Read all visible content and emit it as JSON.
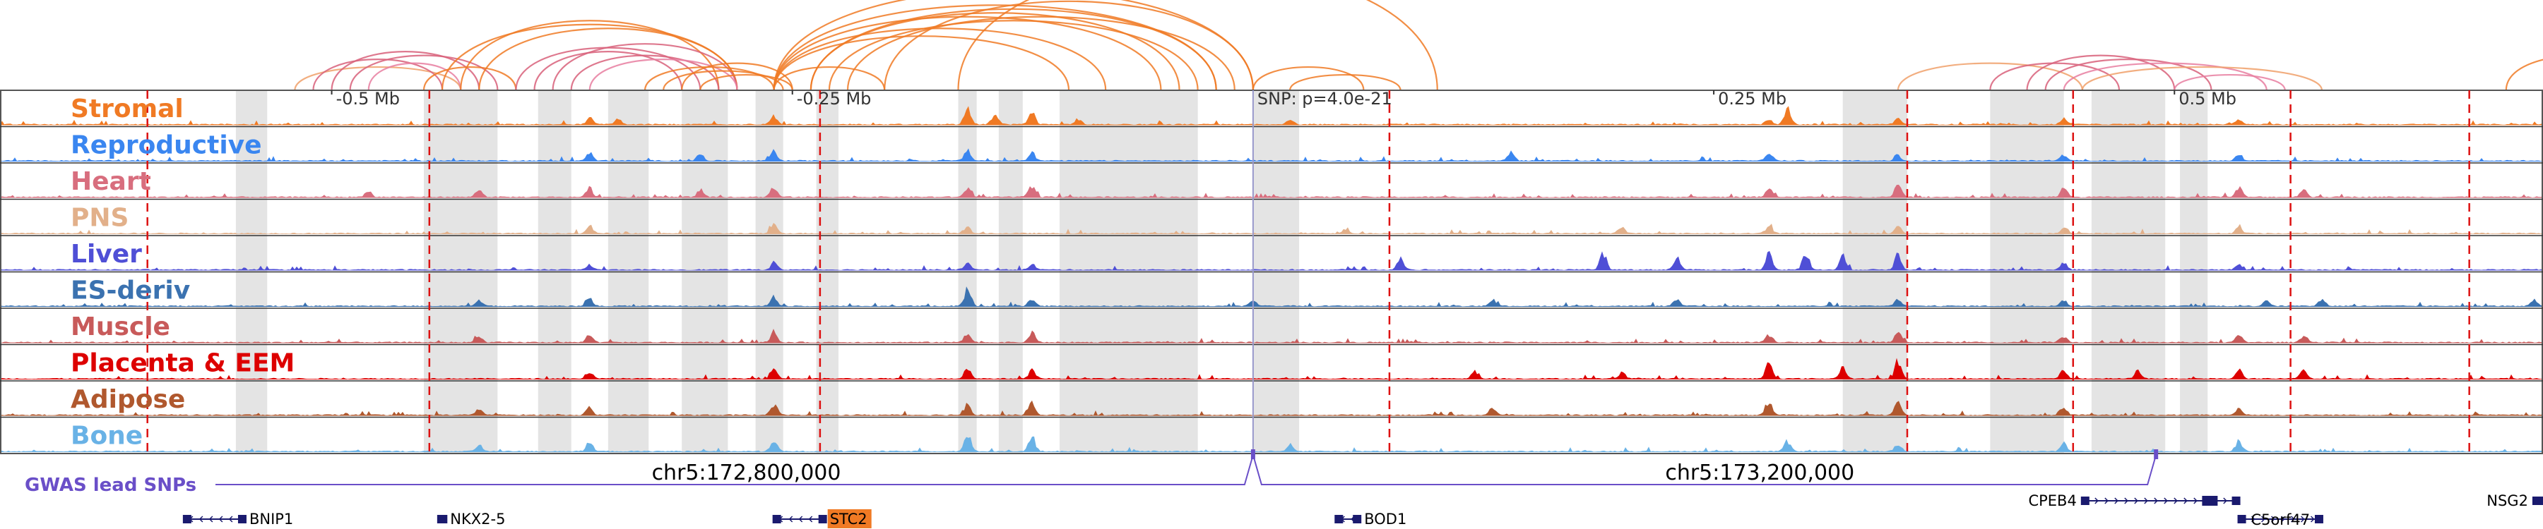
{
  "chart_data": {
    "type": "area",
    "region": {
      "chrom": "chr5",
      "center_label": "SNP: p=4.0e-21",
      "range_mb": [
        -0.68,
        0.7
      ]
    },
    "axis_ticks": [
      {
        "label": "-0.5 Mb",
        "pos_mb": -0.5
      },
      {
        "label": "-0.25 Mb",
        "pos_mb": -0.25
      },
      {
        "label": "0.25 Mb",
        "pos_mb": 0.25
      },
      {
        "label": "0.5 Mb",
        "pos_mb": 0.5
      }
    ],
    "coordinate_labels": [
      {
        "text": "chr5:172,800,000",
        "pos_mb": -0.275
      },
      {
        "text": "chr5:173,200,000",
        "pos_mb": 0.275
      }
    ],
    "tracks": [
      {
        "name": "Stromal",
        "color": "#f07a24",
        "peaks": [
          [
            -0.36,
            0.35
          ],
          [
            -0.345,
            0.3
          ],
          [
            -0.26,
            0.45
          ],
          [
            -0.155,
            0.9
          ],
          [
            -0.14,
            0.6
          ],
          [
            -0.12,
            0.7
          ],
          [
            -0.095,
            0.3
          ],
          [
            0.02,
            0.25
          ],
          [
            0.28,
            0.3
          ],
          [
            0.29,
            0.9
          ],
          [
            0.35,
            0.3
          ],
          [
            0.44,
            0.3
          ],
          [
            0.535,
            0.25
          ]
        ]
      },
      {
        "name": "Reproductive",
        "color": "#3a86f0",
        "peaks": [
          [
            -0.36,
            0.4
          ],
          [
            -0.3,
            0.35
          ],
          [
            -0.26,
            0.5
          ],
          [
            -0.155,
            0.55
          ],
          [
            -0.12,
            0.45
          ],
          [
            0.14,
            0.4
          ],
          [
            0.28,
            0.45
          ],
          [
            0.35,
            0.3
          ],
          [
            0.44,
            0.3
          ],
          [
            0.535,
            0.35
          ]
        ]
      },
      {
        "name": "Heart",
        "color": "#d86e7e",
        "peaks": [
          [
            -0.48,
            0.3
          ],
          [
            -0.42,
            0.4
          ],
          [
            -0.36,
            0.45
          ],
          [
            -0.3,
            0.35
          ],
          [
            -0.26,
            0.5
          ],
          [
            -0.155,
            0.45
          ],
          [
            -0.12,
            0.6
          ],
          [
            0.28,
            0.45
          ],
          [
            0.35,
            0.7
          ],
          [
            0.44,
            0.5
          ],
          [
            0.535,
            0.5
          ],
          [
            0.57,
            0.4
          ]
        ]
      },
      {
        "name": "PNS",
        "color": "#e2b08a",
        "peaks": [
          [
            -0.36,
            0.3
          ],
          [
            -0.26,
            0.45
          ],
          [
            -0.155,
            0.3
          ],
          [
            0.05,
            0.2
          ],
          [
            0.2,
            0.35
          ],
          [
            0.28,
            0.4
          ],
          [
            0.35,
            0.35
          ],
          [
            0.44,
            0.3
          ],
          [
            0.535,
            0.3
          ]
        ]
      },
      {
        "name": "Liver",
        "color": "#4f4fd6",
        "peaks": [
          [
            -0.36,
            0.25
          ],
          [
            -0.26,
            0.35
          ],
          [
            -0.155,
            0.4
          ],
          [
            -0.12,
            0.3
          ],
          [
            0.08,
            0.55
          ],
          [
            0.19,
            0.85
          ],
          [
            0.23,
            0.7
          ],
          [
            0.28,
            0.8
          ],
          [
            0.3,
            0.9
          ],
          [
            0.32,
            0.75
          ],
          [
            0.35,
            0.8
          ],
          [
            0.44,
            0.35
          ],
          [
            0.535,
            0.3
          ]
        ]
      },
      {
        "name": "ES-deriv",
        "color": "#3b72b0",
        "peaks": [
          [
            -0.42,
            0.3
          ],
          [
            -0.36,
            0.4
          ],
          [
            -0.26,
            0.45
          ],
          [
            -0.155,
            0.8
          ],
          [
            -0.12,
            0.35
          ],
          [
            0.0,
            0.3
          ],
          [
            0.13,
            0.35
          ],
          [
            0.23,
            0.4
          ],
          [
            0.35,
            0.35
          ],
          [
            0.44,
            0.3
          ],
          [
            0.55,
            0.35
          ],
          [
            0.58,
            0.4
          ],
          [
            0.695,
            0.3
          ]
        ]
      },
      {
        "name": "Muscle",
        "color": "#c85a5a",
        "peaks": [
          [
            -0.42,
            0.3
          ],
          [
            -0.36,
            0.4
          ],
          [
            -0.26,
            0.5
          ],
          [
            -0.155,
            0.45
          ],
          [
            -0.12,
            0.55
          ],
          [
            0.28,
            0.4
          ],
          [
            0.35,
            0.55
          ],
          [
            0.44,
            0.35
          ],
          [
            0.535,
            0.4
          ],
          [
            0.57,
            0.35
          ]
        ]
      },
      {
        "name": "Placenta & EEM",
        "color": "#dd0000",
        "peaks": [
          [
            -0.36,
            0.35
          ],
          [
            -0.26,
            0.55
          ],
          [
            -0.155,
            0.6
          ],
          [
            -0.12,
            0.5
          ],
          [
            0.12,
            0.4
          ],
          [
            0.2,
            0.35
          ],
          [
            0.28,
            0.85
          ],
          [
            0.32,
            0.6
          ],
          [
            0.35,
            0.9
          ],
          [
            0.44,
            0.45
          ],
          [
            0.48,
            0.4
          ],
          [
            0.535,
            0.4
          ],
          [
            0.57,
            0.5
          ]
        ]
      },
      {
        "name": "Adipose",
        "color": "#b0582e",
        "peaks": [
          [
            -0.42,
            0.3
          ],
          [
            -0.36,
            0.4
          ],
          [
            -0.26,
            0.6
          ],
          [
            -0.155,
            0.55
          ],
          [
            -0.12,
            0.6
          ],
          [
            0.13,
            0.35
          ],
          [
            0.28,
            0.7
          ],
          [
            0.35,
            0.75
          ],
          [
            0.44,
            0.45
          ],
          [
            0.535,
            0.4
          ]
        ]
      },
      {
        "name": "Bone",
        "color": "#69b2e6",
        "peaks": [
          [
            -0.42,
            0.35
          ],
          [
            -0.36,
            0.5
          ],
          [
            -0.26,
            0.55
          ],
          [
            -0.155,
            0.9
          ],
          [
            -0.12,
            0.8
          ],
          [
            0.02,
            0.3
          ],
          [
            0.29,
            0.55
          ],
          [
            0.35,
            0.4
          ],
          [
            0.44,
            0.4
          ],
          [
            0.535,
            0.55
          ]
        ]
      }
    ],
    "highlight_bands_mb": [
      -0.552,
      -0.535,
      -0.45,
      -0.41,
      -0.388,
      -0.37,
      -0.35,
      -0.328,
      -0.31,
      -0.285,
      -0.27,
      -0.255,
      -0.237,
      -0.225,
      -0.16,
      -0.15,
      -0.138,
      -0.125,
      -0.105,
      -0.03,
      0.0,
      0.025,
      0.32,
      0.355,
      0.4,
      0.44,
      0.455,
      0.495,
      0.503,
      0.518
    ],
    "boundaries_mb": [
      -0.6,
      -0.447,
      -0.235,
      0.074,
      0.355,
      0.445,
      0.563,
      0.66
    ],
    "gwas_lead_snps": {
      "label": "GWAS lead SNPs",
      "color": "#6a4fc8",
      "positions_mb": [
        0.0,
        0.49
      ]
    },
    "genes": [
      {
        "name": "BNIP1",
        "start_mb": -0.58,
        "end_mb": -0.547,
        "strand": "-"
      },
      {
        "name": "NKX2-5",
        "start_mb": -0.442,
        "end_mb": -0.438,
        "strand": "-"
      },
      {
        "name": "STC2",
        "start_mb": -0.26,
        "end_mb": -0.232,
        "strand": "-",
        "highlight_color": "#f07a24"
      },
      {
        "name": "BOD1",
        "start_mb": 0.045,
        "end_mb": 0.058,
        "strand": "-"
      },
      {
        "name": "CPEB4",
        "start_mb": 0.45,
        "end_mb": 0.535,
        "strand": "+"
      },
      {
        "name": "C5orf47",
        "start_mb": 0.535,
        "end_mb": 0.58,
        "strand": "+"
      },
      {
        "name": "NSG2",
        "start_mb": 0.695,
        "end_mb": 0.7,
        "strand": "+"
      }
    ],
    "loops": [
      {
        "a": -0.52,
        "b": -0.43,
        "color": "#f0a06a",
        "h": 0.3
      },
      {
        "a": -0.51,
        "b": -0.44,
        "color": "#d8607a",
        "h": 0.4
      },
      {
        "a": -0.5,
        "b": -0.42,
        "color": "#d8607a",
        "h": 0.5
      },
      {
        "a": -0.49,
        "b": -0.41,
        "color": "#d8607a",
        "h": 0.45
      },
      {
        "a": -0.48,
        "b": -0.43,
        "color": "#e87ea0",
        "h": 0.35
      },
      {
        "a": -0.45,
        "b": -0.4,
        "color": "#f07a24",
        "h": 0.3
      },
      {
        "a": -0.44,
        "b": -0.28,
        "color": "#f07a24",
        "h": 0.85
      },
      {
        "a": -0.43,
        "b": -0.29,
        "color": "#f07a24",
        "h": 0.9
      },
      {
        "a": -0.42,
        "b": -0.28,
        "color": "#f07a24",
        "h": 0.8
      },
      {
        "a": -0.4,
        "b": -0.3,
        "color": "#d8607a",
        "h": 0.55
      },
      {
        "a": -0.39,
        "b": -0.31,
        "color": "#d8607a",
        "h": 0.5
      },
      {
        "a": -0.38,
        "b": -0.28,
        "color": "#d8607a",
        "h": 0.6
      },
      {
        "a": -0.37,
        "b": -0.29,
        "color": "#d8607a",
        "h": 0.45
      },
      {
        "a": -0.36,
        "b": -0.28,
        "color": "#e87ea0",
        "h": 0.4
      },
      {
        "a": -0.33,
        "b": -0.26,
        "color": "#f07a24",
        "h": 0.3
      },
      {
        "a": -0.32,
        "b": -0.255,
        "color": "#f07a24",
        "h": 0.25
      },
      {
        "a": -0.31,
        "b": -0.25,
        "color": "#f07a24",
        "h": 0.35
      },
      {
        "a": -0.3,
        "b": -0.25,
        "color": "#f07a24",
        "h": 0.2
      },
      {
        "a": -0.26,
        "b": -0.2,
        "color": "#f07a24",
        "h": 0.3
      },
      {
        "a": -0.26,
        "b": -0.1,
        "color": "#f07a24",
        "h": 0.7
      },
      {
        "a": -0.26,
        "b": -0.08,
        "color": "#f07a24",
        "h": 0.8
      },
      {
        "a": -0.26,
        "b": -0.05,
        "color": "#f07a24",
        "h": 0.95
      },
      {
        "a": -0.26,
        "b": -0.02,
        "color": "#f07a24",
        "h": 1.1
      },
      {
        "a": -0.26,
        "b": 0.0,
        "color": "#f07a24",
        "h": 1.3
      },
      {
        "a": -0.24,
        "b": -0.04,
        "color": "#f07a24",
        "h": 1.0
      },
      {
        "a": -0.24,
        "b": -0.02,
        "color": "#f07a24",
        "h": 1.05
      },
      {
        "a": -0.23,
        "b": -0.03,
        "color": "#f07a24",
        "h": 0.9
      },
      {
        "a": -0.22,
        "b": -0.01,
        "color": "#f07a24",
        "h": 0.95
      },
      {
        "a": -0.2,
        "b": 0.0,
        "color": "#f07a24",
        "h": 1.15
      },
      {
        "a": -0.16,
        "b": 0.1,
        "color": "#f07a24",
        "h": 1.6
      },
      {
        "a": -0.0,
        "b": 0.06,
        "color": "#f07a24",
        "h": 0.3
      },
      {
        "a": 0.02,
        "b": 0.08,
        "color": "#f07a24",
        "h": 0.2
      },
      {
        "a": 0.35,
        "b": 0.45,
        "color": "#f0a06a",
        "h": 0.35
      },
      {
        "a": 0.4,
        "b": 0.47,
        "color": "#d8607a",
        "h": 0.35
      },
      {
        "a": 0.42,
        "b": 0.5,
        "color": "#d8607a",
        "h": 0.45
      },
      {
        "a": 0.43,
        "b": 0.52,
        "color": "#d8607a",
        "h": 0.4
      },
      {
        "a": 0.44,
        "b": 0.55,
        "color": "#e87ea0",
        "h": 0.35
      },
      {
        "a": 0.45,
        "b": 0.58,
        "color": "#f0a06a",
        "h": 0.3
      },
      {
        "a": 0.5,
        "b": 0.56,
        "color": "#e87ea0",
        "h": 0.2
      },
      {
        "a": 0.68,
        "b": 0.76,
        "color": "#f07a24",
        "h": 0.45
      }
    ]
  }
}
